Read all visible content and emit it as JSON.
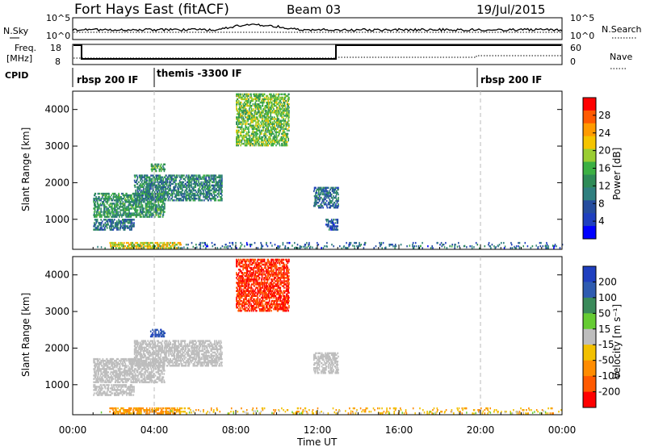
{
  "header": {
    "station": "Fort Hays East (fitACF)",
    "beam": "Beam 03",
    "date": "19/Jul/2015"
  },
  "top_panels": {
    "nsky_label": "N.Sky",
    "nsearch_label": "N.Search",
    "noise_ticks": [
      "10^5",
      "10^0"
    ],
    "freq_label_1": "Freq.",
    "freq_label_2": "[MHz]",
    "freq_ticks": [
      "18",
      "8"
    ],
    "nave_label": "Nave",
    "nave_ticks": [
      "60",
      "0"
    ],
    "cpid_label": "CPID",
    "cpid_segments": [
      {
        "label": "rbsp 200 IF",
        "start_h": 0
      },
      {
        "label": "themis -3300 IF",
        "start_h": 4
      },
      {
        "label": "rbsp 200 IF",
        "start_h": 20
      }
    ]
  },
  "power_colorbar": {
    "title": "Power [dB]",
    "ticks": [
      "28",
      "24",
      "20",
      "16",
      "12",
      "8",
      "4"
    ],
    "colors": [
      "#ff0000",
      "#ff5a00",
      "#ff9a00",
      "#f5c400",
      "#9acd32",
      "#3cb043",
      "#2e8b57",
      "#2f7f7f",
      "#264d9e",
      "#1f3fbf",
      "#0000ff"
    ]
  },
  "velocity_colorbar": {
    "title": "Velocity [m s⁻¹]",
    "ticks": [
      "200",
      "100",
      "50",
      "15",
      "-15",
      "-50",
      "-100",
      "-200"
    ],
    "colors": [
      "#1f3fbf",
      "#2e5bb0",
      "#3a8a5a",
      "#66cc33",
      "#bdbdbd",
      "#f2c000",
      "#ff8c00",
      "#ff5a00",
      "#ff0000"
    ]
  },
  "chart_data": [
    {
      "type": "scatter",
      "name": "power",
      "ylabel": "Slant Range [km]",
      "xlabel": "Time UT",
      "x_ticks": [
        "00:00",
        "04:00",
        "08:00",
        "12:00",
        "16:00",
        "20:00",
        "00:00"
      ],
      "y_ticks": [
        "1000",
        "2000",
        "3000",
        "4000"
      ],
      "xlim": [
        0,
        24
      ],
      "ylim": [
        180,
        4500
      ],
      "features": [
        {
          "t0": 1.0,
          "t1": 4.5,
          "r0": 1050,
          "r1": 1700,
          "level": 12
        },
        {
          "t0": 1.0,
          "t1": 3.0,
          "r0": 700,
          "r1": 1000,
          "level": 8
        },
        {
          "t0": 3.0,
          "t1": 7.3,
          "r0": 1500,
          "r1": 2200,
          "level": 10
        },
        {
          "t0": 3.8,
          "t1": 4.5,
          "r0": 2300,
          "r1": 2500,
          "level": 14
        },
        {
          "t0": 1.8,
          "t1": 5.3,
          "r0": 200,
          "r1": 350,
          "level": 20
        },
        {
          "t0": 11.8,
          "t1": 13.0,
          "r0": 1300,
          "r1": 1850,
          "level": 8
        },
        {
          "t0": 12.4,
          "t1": 13.0,
          "r0": 700,
          "r1": 1000,
          "level": 6
        },
        {
          "t0": 8.0,
          "t1": 10.6,
          "r0": 3000,
          "r1": 4400,
          "level": 16
        },
        {
          "t0": 5.3,
          "t1": 24.0,
          "r0": 200,
          "r1": 350,
          "level": 6
        }
      ]
    },
    {
      "type": "scatter",
      "name": "velocity",
      "ylabel": "Slant Range [km]",
      "xlabel": "Time UT",
      "x_ticks": [
        "00:00",
        "04:00",
        "08:00",
        "12:00",
        "16:00",
        "20:00",
        "00:00"
      ],
      "y_ticks": [
        "1000",
        "2000",
        "3000",
        "4000"
      ],
      "xlim": [
        0,
        24
      ],
      "ylim": [
        180,
        4500
      ],
      "features": [
        {
          "t0": 1.0,
          "t1": 4.5,
          "r0": 1050,
          "r1": 1700,
          "level": 0
        },
        {
          "t0": 1.0,
          "t1": 3.0,
          "r0": 700,
          "r1": 1000,
          "level": 0
        },
        {
          "t0": 3.0,
          "t1": 7.3,
          "r0": 1500,
          "r1": 2200,
          "level": 0
        },
        {
          "t0": 3.8,
          "t1": 4.5,
          "r0": 2300,
          "r1": 2500,
          "level": 150
        },
        {
          "t0": 1.8,
          "t1": 5.3,
          "r0": 200,
          "r1": 350,
          "level": -40
        },
        {
          "t0": 11.8,
          "t1": 13.0,
          "r0": 1300,
          "r1": 1850,
          "level": 0
        },
        {
          "t0": 8.0,
          "t1": 10.6,
          "r0": 3000,
          "r1": 4400,
          "level": -150
        },
        {
          "t0": 5.3,
          "t1": 24.0,
          "r0": 200,
          "r1": 350,
          "level": -30
        }
      ]
    }
  ]
}
